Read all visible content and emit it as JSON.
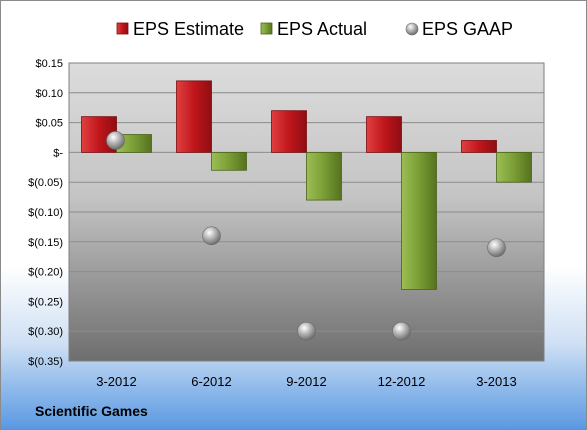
{
  "company_label": "Scientific Games",
  "chart_data": {
    "type": "bar",
    "title": "",
    "xlabel": "",
    "ylabel": "",
    "categories": [
      "3-2012",
      "6-2012",
      "9-2012",
      "12-2012",
      "3-2013"
    ],
    "series": [
      {
        "name": "EPS Estimate",
        "kind": "bar",
        "color": "#c0161c",
        "values": [
          0.06,
          0.12,
          0.07,
          0.06,
          0.02
        ]
      },
      {
        "name": "EPS Actual",
        "kind": "bar",
        "color": "#6d8f2a",
        "values": [
          0.03,
          -0.03,
          -0.08,
          -0.23,
          -0.05
        ]
      },
      {
        "name": "EPS GAAP",
        "kind": "scatter",
        "color": "#a6a6a6",
        "values": [
          0.02,
          -0.14,
          -0.3,
          -0.3,
          -0.16
        ]
      }
    ],
    "ylim": [
      -0.35,
      0.15
    ],
    "yticks": [
      {
        "value": 0.15,
        "label": "$0.15"
      },
      {
        "value": 0.1,
        "label": "$0.10"
      },
      {
        "value": 0.05,
        "label": "$0.05"
      },
      {
        "value": 0.0,
        "label": "$-"
      },
      {
        "value": -0.05,
        "label": "$(0.05)"
      },
      {
        "value": -0.1,
        "label": "$(0.10)"
      },
      {
        "value": -0.15,
        "label": "$(0.15)"
      },
      {
        "value": -0.2,
        "label": "$(0.20)"
      },
      {
        "value": -0.25,
        "label": "$(0.25)"
      },
      {
        "value": -0.3,
        "label": "$(0.30)"
      },
      {
        "value": -0.35,
        "label": "$(0.35)"
      }
    ],
    "grid": true,
    "legend_position": "top"
  }
}
